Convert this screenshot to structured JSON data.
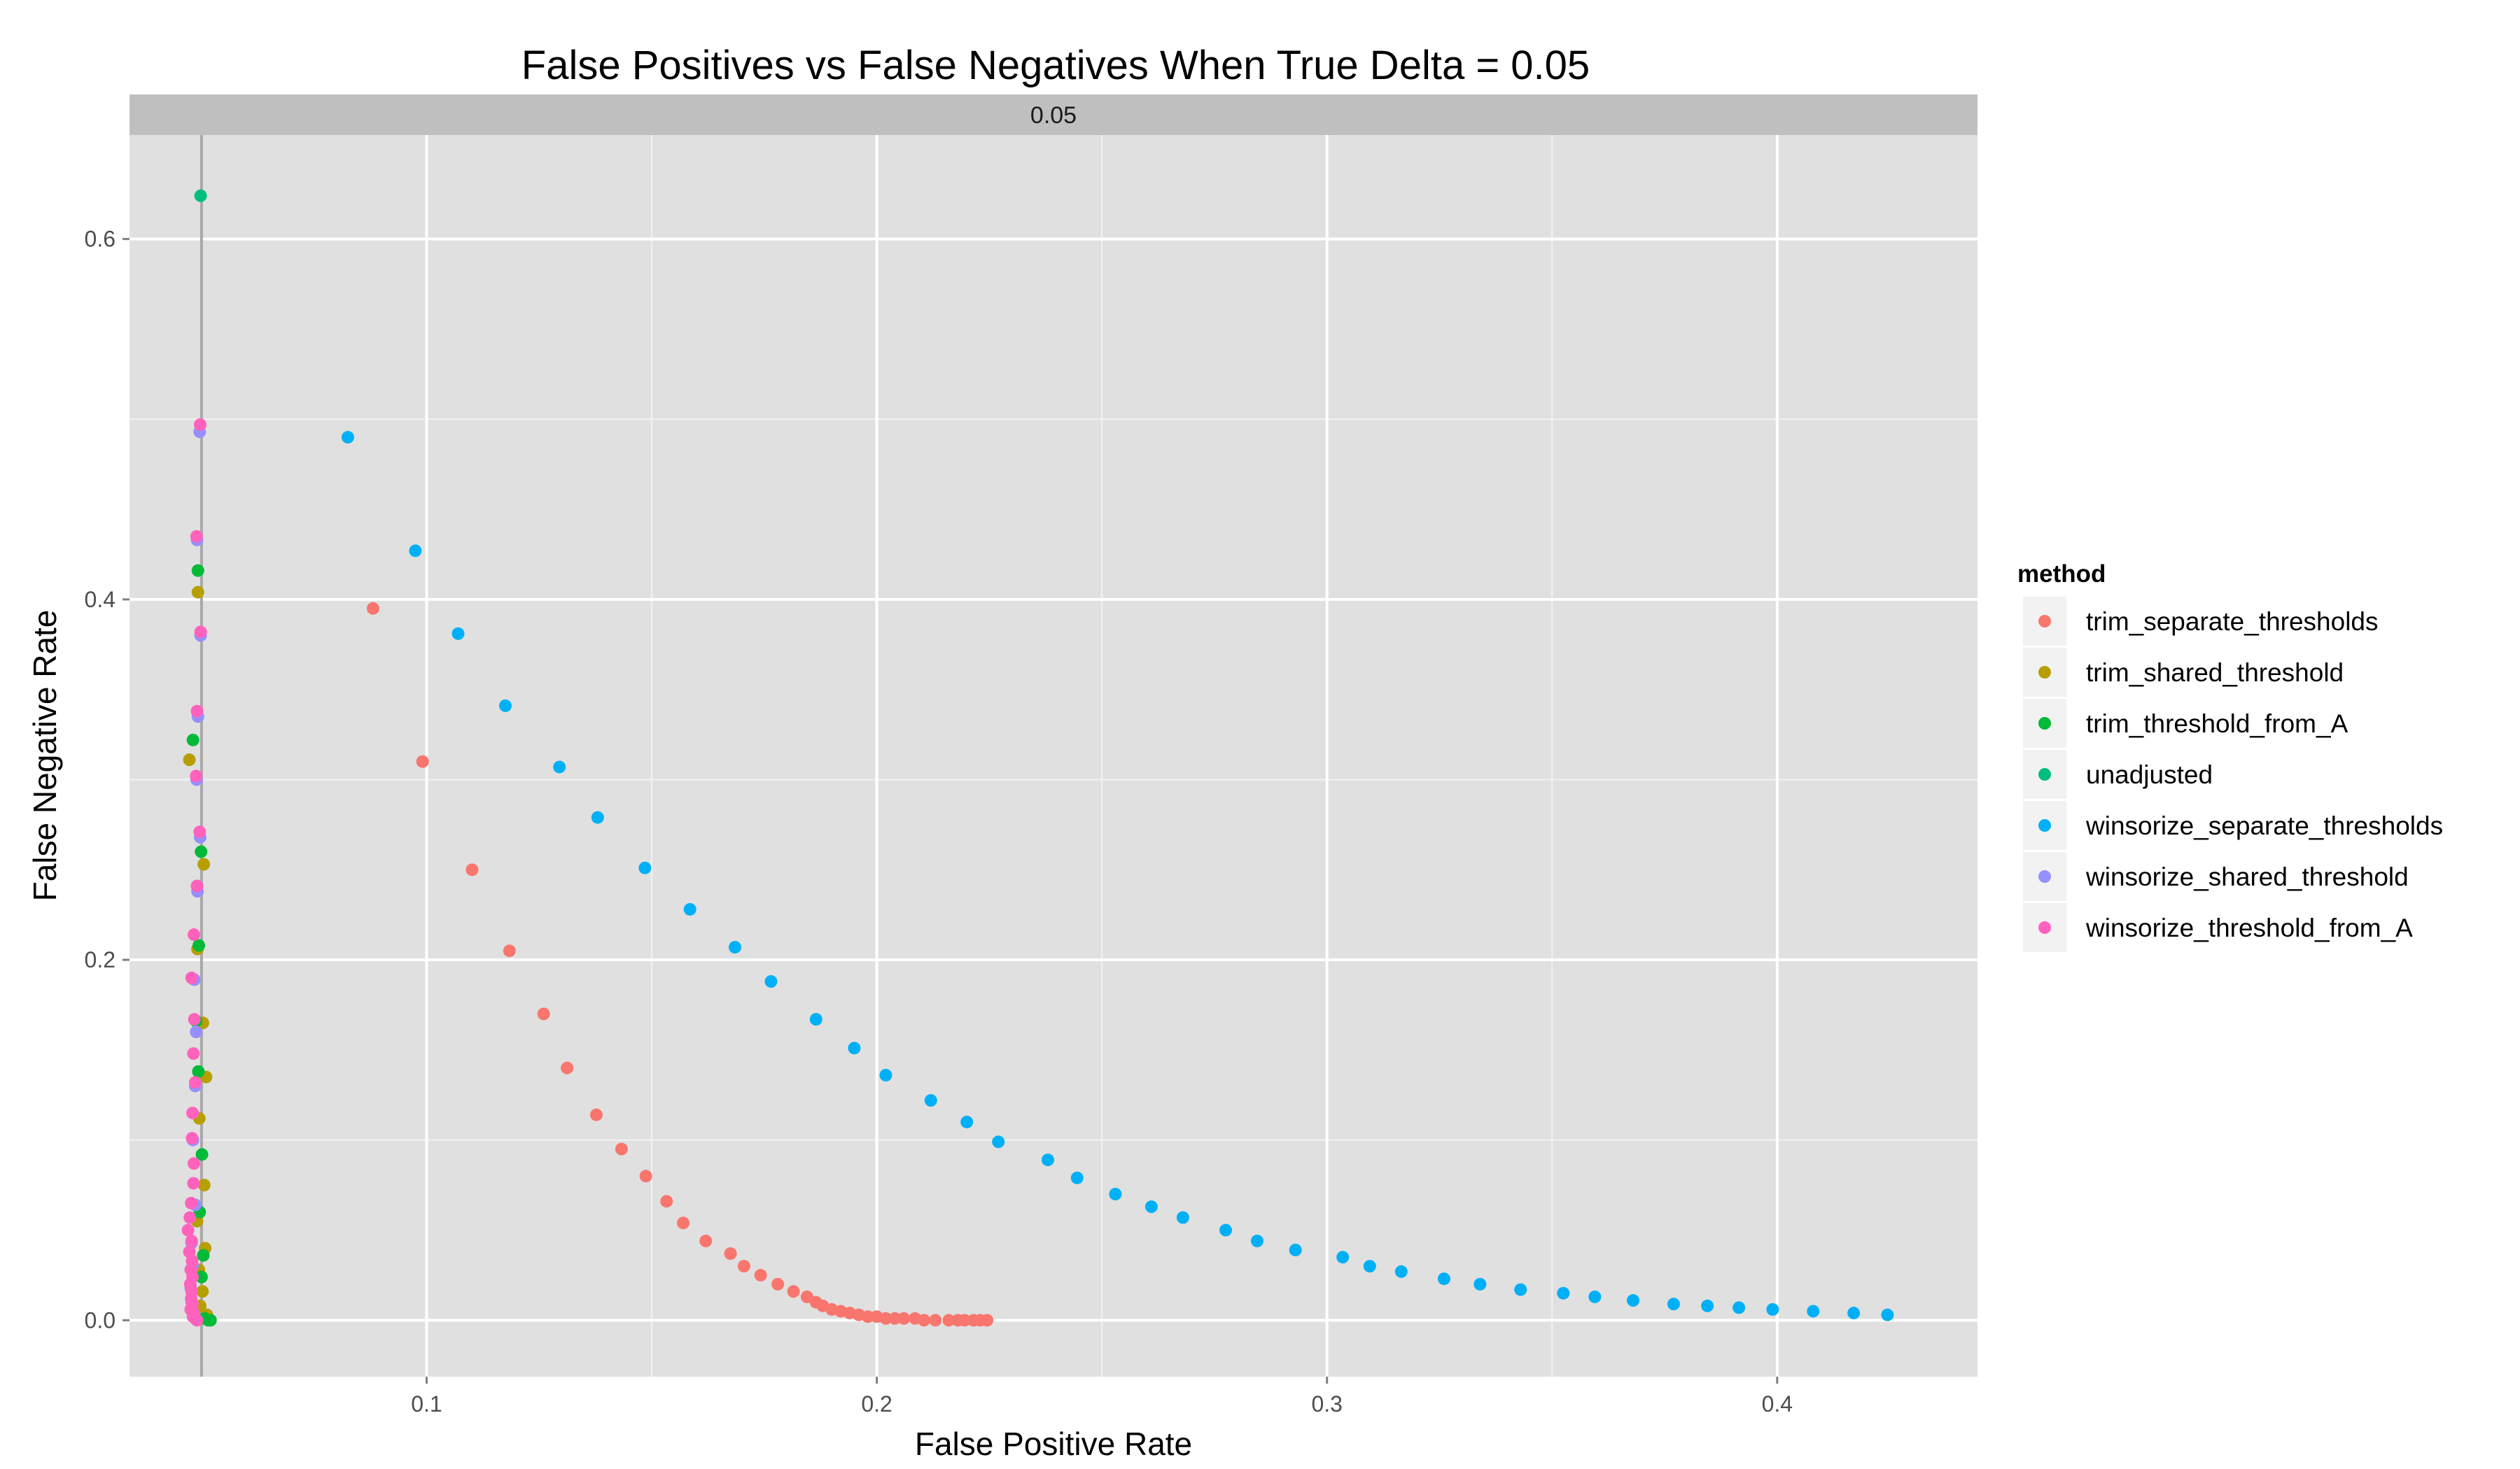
{
  "chart_data": {
    "type": "scatter",
    "title": "False Positives vs False Negatives When True Delta = 0.05",
    "facet_label": "0.05",
    "xlabel": "False Positive Rate",
    "ylabel": "False Negative Rate",
    "xlim": [
      0.034,
      0.4445
    ],
    "ylim": [
      -0.0313,
      0.6577
    ],
    "x_ticks": [
      0.1,
      0.2,
      0.3,
      0.4
    ],
    "x_tick_labels": [
      "0.1",
      "0.2",
      "0.3",
      "0.4"
    ],
    "y_ticks": [
      0.0,
      0.2,
      0.4,
      0.6
    ],
    "y_tick_labels": [
      "0.0",
      "0.2",
      "0.4",
      "0.6"
    ],
    "vline_x": 0.05,
    "grid": true,
    "legend_position": "right",
    "legend_title": "method",
    "series": [
      {
        "name": "trim_separate_thresholds",
        "color": "#F8766D",
        "points": [
          [
            0.0881,
            0.395
          ],
          [
            0.0991,
            0.31
          ],
          [
            0.1101,
            0.25
          ],
          [
            0.1184,
            0.205
          ],
          [
            0.126,
            0.17
          ],
          [
            0.1312,
            0.14
          ],
          [
            0.1377,
            0.114
          ],
          [
            0.1433,
            0.095
          ],
          [
            0.1487,
            0.08
          ],
          [
            0.1533,
            0.066
          ],
          [
            0.157,
            0.054
          ],
          [
            0.162,
            0.044
          ],
          [
            0.1675,
            0.037
          ],
          [
            0.1705,
            0.03
          ],
          [
            0.1742,
            0.025
          ],
          [
            0.178,
            0.02
          ],
          [
            0.1815,
            0.016
          ],
          [
            0.1845,
            0.013
          ],
          [
            0.1865,
            0.01
          ],
          [
            0.188,
            0.008
          ],
          [
            0.19,
            0.006
          ],
          [
            0.192,
            0.005
          ],
          [
            0.194,
            0.004
          ],
          [
            0.196,
            0.003
          ],
          [
            0.198,
            0.002
          ],
          [
            0.2,
            0.002
          ],
          [
            0.202,
            0.001
          ],
          [
            0.204,
            0.001
          ],
          [
            0.206,
            0.001
          ],
          [
            0.2085,
            0.001
          ],
          [
            0.2105,
            0.0
          ],
          [
            0.213,
            0.0
          ],
          [
            0.216,
            0.0
          ],
          [
            0.218,
            0.0
          ],
          [
            0.2195,
            0.0
          ],
          [
            0.2215,
            0.0
          ],
          [
            0.223,
            0.0
          ],
          [
            0.2245,
            0.0
          ]
        ]
      },
      {
        "name": "trim_shared_threshold",
        "color": "#B79F00",
        "points": [
          [
            0.0492,
            0.404
          ],
          [
            0.0473,
            0.311
          ],
          [
            0.0505,
            0.253
          ],
          [
            0.0491,
            0.206
          ],
          [
            0.0503,
            0.165
          ],
          [
            0.051,
            0.135
          ],
          [
            0.0495,
            0.112
          ],
          [
            0.0506,
            0.075
          ],
          [
            0.049,
            0.055
          ],
          [
            0.0508,
            0.04
          ],
          [
            0.0494,
            0.028
          ],
          [
            0.0502,
            0.016
          ],
          [
            0.0497,
            0.008
          ],
          [
            0.0512,
            0.003
          ]
        ]
      },
      {
        "name": "trim_threshold_from_A",
        "color": "#00BA38",
        "points": [
          [
            0.0492,
            0.416
          ],
          [
            0.0481,
            0.322
          ],
          [
            0.0499,
            0.26
          ],
          [
            0.0494,
            0.208
          ],
          [
            0.0488,
            0.166
          ],
          [
            0.0493,
            0.138
          ],
          [
            0.0501,
            0.092
          ],
          [
            0.0496,
            0.06
          ],
          [
            0.0504,
            0.036
          ],
          [
            0.05,
            0.024
          ],
          [
            0.0507,
            0.001
          ],
          [
            0.0515,
            0.0
          ],
          [
            0.052,
            0.0
          ]
        ]
      },
      {
        "name": "unadjusted",
        "color": "#00BF7D",
        "points": [
          [
            0.0498,
            0.624
          ]
        ]
      },
      {
        "name": "winsorize_separate_thresholds",
        "color": "#00B0F6",
        "points": [
          [
            0.0825,
            0.49
          ],
          [
            0.0975,
            0.427
          ],
          [
            0.107,
            0.381
          ],
          [
            0.1175,
            0.341
          ],
          [
            0.1295,
            0.307
          ],
          [
            0.138,
            0.279
          ],
          [
            0.1485,
            0.251
          ],
          [
            0.1585,
            0.228
          ],
          [
            0.1685,
            0.207
          ],
          [
            0.1765,
            0.188
          ],
          [
            0.1865,
            0.167
          ],
          [
            0.195,
            0.151
          ],
          [
            0.202,
            0.136
          ],
          [
            0.212,
            0.122
          ],
          [
            0.22,
            0.11
          ],
          [
            0.227,
            0.099
          ],
          [
            0.238,
            0.089
          ],
          [
            0.2445,
            0.079
          ],
          [
            0.253,
            0.07
          ],
          [
            0.261,
            0.063
          ],
          [
            0.268,
            0.057
          ],
          [
            0.2775,
            0.05
          ],
          [
            0.2845,
            0.044
          ],
          [
            0.293,
            0.039
          ],
          [
            0.3035,
            0.035
          ],
          [
            0.3095,
            0.03
          ],
          [
            0.3165,
            0.027
          ],
          [
            0.326,
            0.023
          ],
          [
            0.334,
            0.02
          ],
          [
            0.343,
            0.017
          ],
          [
            0.3525,
            0.015
          ],
          [
            0.3595,
            0.013
          ],
          [
            0.368,
            0.011
          ],
          [
            0.377,
            0.009
          ],
          [
            0.3845,
            0.008
          ],
          [
            0.3915,
            0.007
          ],
          [
            0.399,
            0.006
          ],
          [
            0.408,
            0.005
          ],
          [
            0.417,
            0.004
          ],
          [
            0.4245,
            0.003
          ]
        ]
      },
      {
        "name": "winsorize_shared_threshold",
        "color": "#9590FF",
        "points": [
          [
            0.0496,
            0.493
          ],
          [
            0.049,
            0.433
          ],
          [
            0.0498,
            0.38
          ],
          [
            0.0492,
            0.335
          ],
          [
            0.0489,
            0.3
          ],
          [
            0.0497,
            0.268
          ],
          [
            0.0491,
            0.238
          ],
          [
            0.0484,
            0.189
          ],
          [
            0.0488,
            0.16
          ],
          [
            0.0486,
            0.13
          ],
          [
            0.0481,
            0.1
          ],
          [
            0.0486,
            0.064
          ],
          [
            0.0478,
            0.043
          ],
          [
            0.048,
            0.03
          ],
          [
            0.0476,
            0.018
          ],
          [
            0.0478,
            0.01
          ],
          [
            0.0483,
            0.004
          ]
        ]
      },
      {
        "name": "winsorize_threshold_from_A",
        "color": "#FF62BC",
        "points": [
          [
            0.0497,
            0.497
          ],
          [
            0.0489,
            0.435
          ],
          [
            0.0498,
            0.382
          ],
          [
            0.049,
            0.338
          ],
          [
            0.0488,
            0.302
          ],
          [
            0.0496,
            0.271
          ],
          [
            0.049,
            0.241
          ],
          [
            0.0483,
            0.214
          ],
          [
            0.0478,
            0.19
          ],
          [
            0.0484,
            0.167
          ],
          [
            0.0482,
            0.148
          ],
          [
            0.0486,
            0.132
          ],
          [
            0.048,
            0.115
          ],
          [
            0.0479,
            0.101
          ],
          [
            0.0483,
            0.087
          ],
          [
            0.0482,
            0.076
          ],
          [
            0.0477,
            0.065
          ],
          [
            0.0474,
            0.057
          ],
          [
            0.047,
            0.05
          ],
          [
            0.0478,
            0.044
          ],
          [
            0.0473,
            0.038
          ],
          [
            0.0479,
            0.033
          ],
          [
            0.0476,
            0.028
          ],
          [
            0.048,
            0.024
          ],
          [
            0.0475,
            0.02
          ],
          [
            0.0478,
            0.016
          ],
          [
            0.0477,
            0.012
          ],
          [
            0.048,
            0.009
          ],
          [
            0.0476,
            0.006
          ],
          [
            0.0483,
            0.004
          ],
          [
            0.0481,
            0.002
          ],
          [
            0.0486,
            0.001
          ],
          [
            0.049,
            0.0
          ]
        ]
      }
    ]
  }
}
